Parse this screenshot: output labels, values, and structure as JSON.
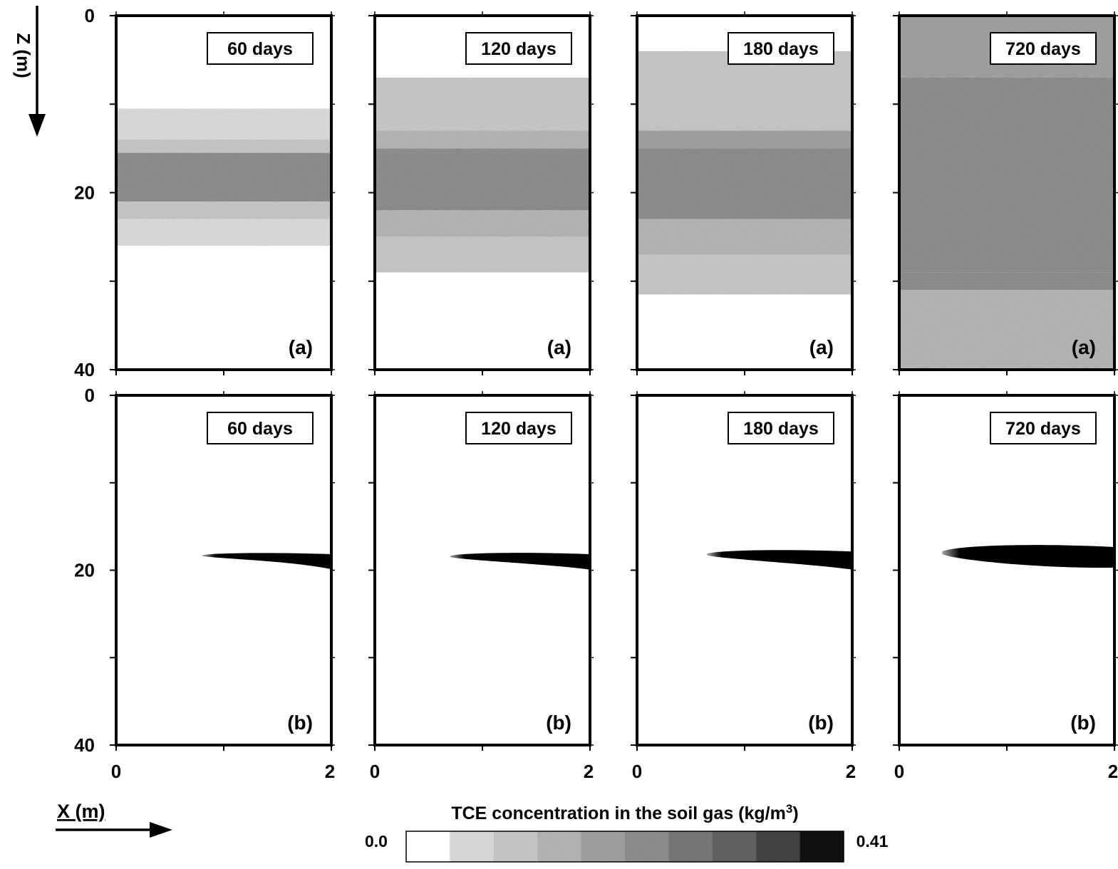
{
  "axes": {
    "z_label": "Z (m)",
    "x_label": "X (m)",
    "z_ticks": [
      "0",
      "20",
      "40"
    ],
    "x_ticks": [
      "0",
      "2"
    ]
  },
  "colorbar": {
    "title_text": "TCE concentration in the soil gas (kg/m",
    "title_sup": "3",
    "title_close": ")",
    "min_label": "0.0",
    "max_label": "0.41",
    "levels": [
      "#ffffff",
      "#e4e4e4",
      "#d0d0d0",
      "#bdbdbd",
      "#a9a9a9",
      "#959595",
      "#7e7e7e",
      "#666666",
      "#4a4a4a",
      "#111111"
    ]
  },
  "chart_data": {
    "type": "heatmap",
    "variable": "TCE concentration in the soil gas",
    "units": "kg/m3",
    "value_range": [
      0.0,
      0.41
    ],
    "x_range": [
      0,
      2
    ],
    "z_range": [
      0,
      40
    ],
    "panels": [
      {
        "row": "a",
        "label": "(a)",
        "time": "60 days",
        "bands": [
          {
            "z": [
              10.5,
              14
            ],
            "c": 0.05
          },
          {
            "z": [
              14,
              15.5
            ],
            "c": 0.1
          },
          {
            "z": [
              15.5,
              21
            ],
            "c": 0.22
          },
          {
            "z": [
              21,
              23
            ],
            "c": 0.1
          },
          {
            "z": [
              23,
              26
            ],
            "c": 0.05
          }
        ]
      },
      {
        "row": "a",
        "label": "(a)",
        "time": "120 days",
        "bands": [
          {
            "z": [
              7,
              13
            ],
            "c": 0.08
          },
          {
            "z": [
              13,
              15
            ],
            "c": 0.15
          },
          {
            "z": [
              15,
              22
            ],
            "c": 0.24
          },
          {
            "z": [
              22,
              25
            ],
            "c": 0.14
          },
          {
            "z": [
              25,
              29
            ],
            "c": 0.07
          }
        ]
      },
      {
        "row": "a",
        "label": "(a)",
        "time": "180 days",
        "bands": [
          {
            "z": [
              4,
              13
            ],
            "c": 0.09
          },
          {
            "z": [
              13,
              15
            ],
            "c": 0.17
          },
          {
            "z": [
              15,
              23
            ],
            "c": 0.25
          },
          {
            "z": [
              23,
              27
            ],
            "c": 0.15
          },
          {
            "z": [
              27,
              31.5
            ],
            "c": 0.08
          }
        ]
      },
      {
        "row": "a",
        "label": "(a)",
        "time": "720 days",
        "bands": [
          {
            "z": [
              0,
              7
            ],
            "c": 0.2
          },
          {
            "z": [
              7,
              29
            ],
            "c": 0.25
          },
          {
            "z": [
              29,
              31
            ],
            "c": 0.21
          },
          {
            "z": [
              31,
              40
            ],
            "c": 0.12
          }
        ]
      },
      {
        "row": "b",
        "label": "(b)",
        "time": "60 days",
        "plume": {
          "x": [
            0.8,
            2.0
          ],
          "z_top": 18.1,
          "z_bottom_end": 20.0,
          "thickness": 0.55,
          "c": 0.38
        }
      },
      {
        "row": "b",
        "label": "(b)",
        "time": "120 days",
        "plume": {
          "x": [
            0.7,
            2.0
          ],
          "z_top": 18.1,
          "z_bottom_end": 20.0,
          "thickness": 0.75,
          "c": 0.39
        }
      },
      {
        "row": "b",
        "label": "(b)",
        "time": "180 days",
        "plume": {
          "x": [
            0.65,
            2.0
          ],
          "z_top": 17.8,
          "z_bottom_end": 20.0,
          "thickness": 0.9,
          "c": 0.4
        }
      },
      {
        "row": "b",
        "label": "(b)",
        "time": "720 days",
        "plume": {
          "x": [
            0.4,
            2.0
          ],
          "z_top": 17.3,
          "z_bottom_end": 19.7,
          "thickness": 1.6,
          "c": 0.41
        }
      }
    ]
  }
}
